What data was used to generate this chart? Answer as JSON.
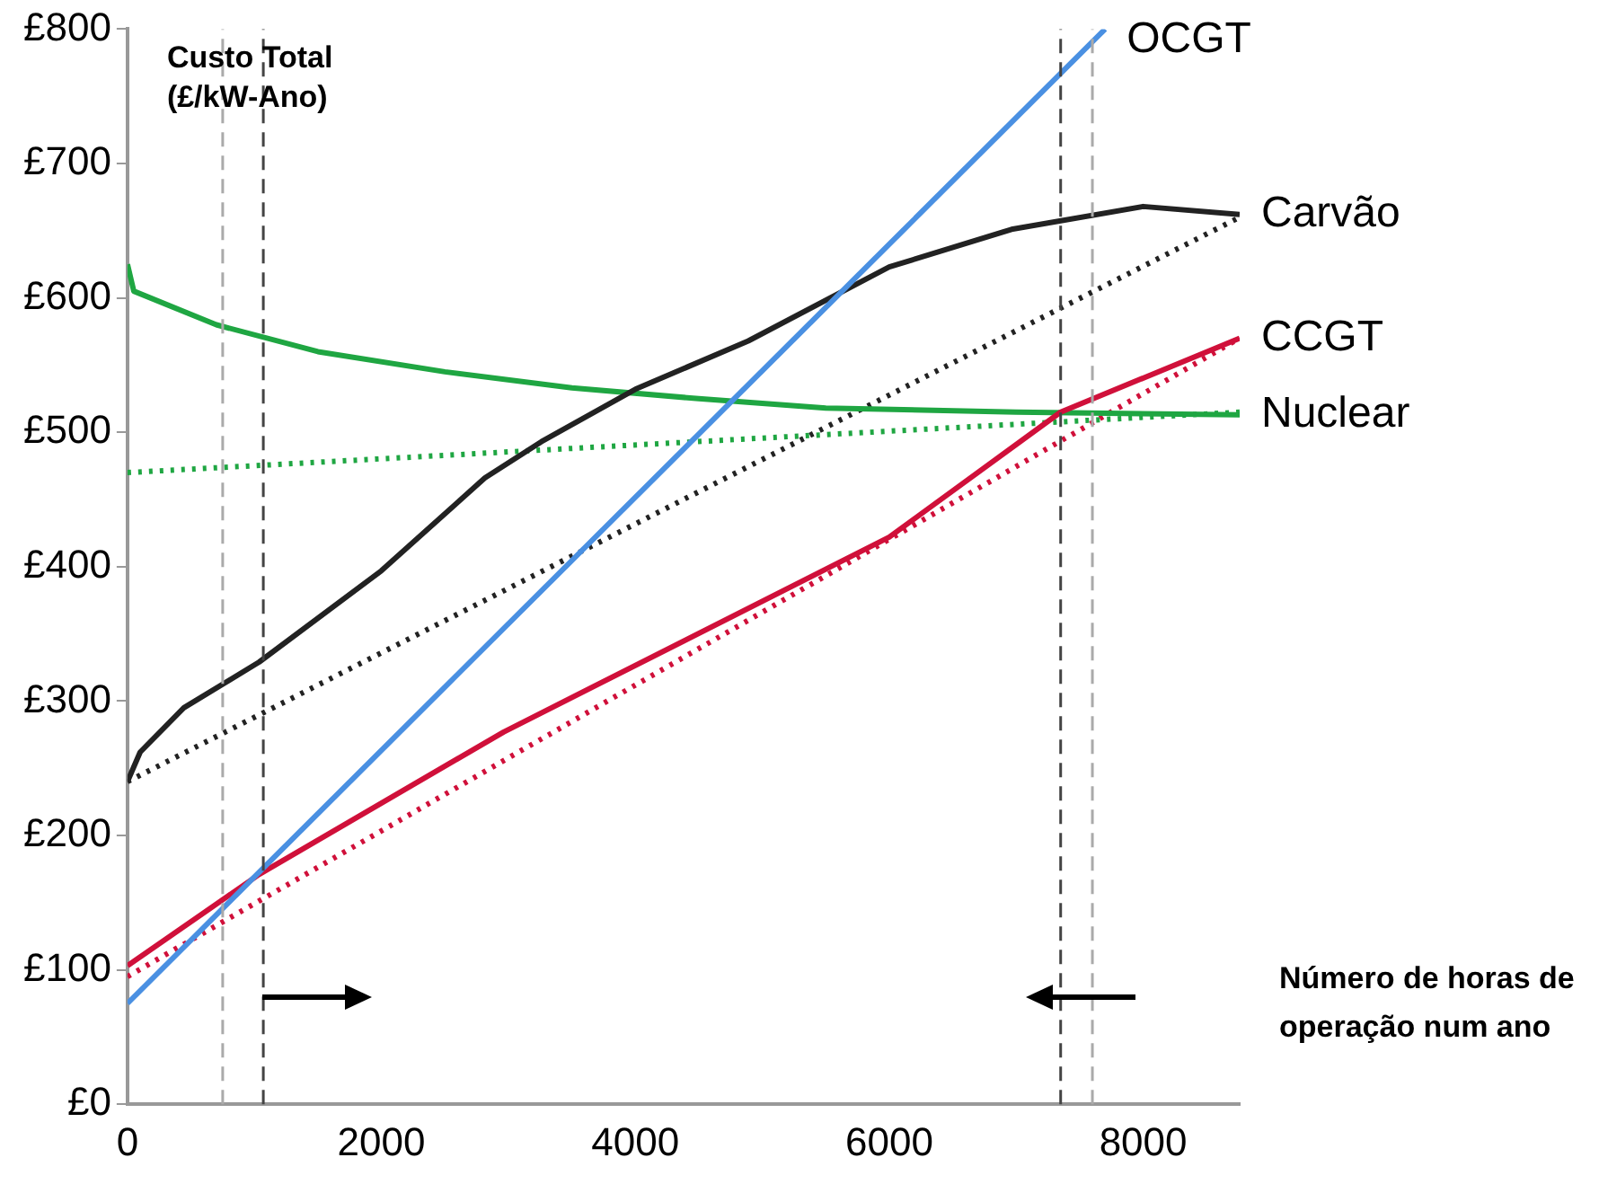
{
  "chart_data": {
    "type": "line",
    "xlabel": "Número de horas de operação num ano",
    "ylabel": "Custo Total (£/kW-Ano)",
    "xlim": [
      0,
      8760
    ],
    "xticks": [
      0,
      2000,
      4000,
      6000,
      8000
    ],
    "ylim": [
      0,
      800
    ],
    "yticks": [
      {
        "value": 0,
        "label": "£0"
      },
      {
        "value": 100,
        "label": "£100"
      },
      {
        "value": 200,
        "label": "£200"
      },
      {
        "value": 300,
        "label": "£300"
      },
      {
        "value": 400,
        "label": "£400"
      },
      {
        "value": 500,
        "label": "£500"
      },
      {
        "value": 600,
        "label": "£600"
      },
      {
        "value": 700,
        "label": "£700"
      },
      {
        "value": 800,
        "label": "£800"
      }
    ],
    "grid": false,
    "legend": false,
    "marker": "none",
    "series": [
      {
        "name": "OCGT",
        "color": "#4a90e2",
        "x": [
          0,
          7700
        ],
        "values": [
          75,
          800
        ]
      },
      {
        "name": "Carvão",
        "color": "#222222",
        "x": [
          0,
          100,
          444,
          1037,
          2000,
          2815,
          3260,
          4000,
          4890,
          6000,
          6963,
          8000,
          8760
        ],
        "values": [
          240,
          262,
          295,
          329,
          397,
          466,
          493,
          532,
          568,
          623,
          651,
          668,
          662
        ]
      },
      {
        "name": "CCGT",
        "color": "#d0103a",
        "x": [
          0,
          1037,
          2963,
          6000,
          7350,
          8760
        ],
        "values": [
          103,
          171,
          277,
          422,
          515,
          570
        ]
      },
      {
        "name": "Nuclear",
        "color": "#1fa642",
        "x": [
          0,
          50,
          700,
          1500,
          2500,
          3500,
          4500,
          5500,
          7000,
          8760
        ],
        "values": [
          625,
          605,
          580,
          560,
          545,
          533,
          525,
          518,
          515,
          513
        ]
      },
      {
        "color": "#222222",
        "line_style": "dotted",
        "x": [
          0,
          8760
        ],
        "values": [
          240,
          660
        ]
      },
      {
        "color": "#d0103a",
        "line_style": "dotted",
        "x": [
          0,
          8760
        ],
        "values": [
          95,
          570
        ]
      },
      {
        "color": "#1fa642",
        "line_style": "dotted",
        "x": [
          0,
          8760
        ],
        "values": [
          470,
          515
        ]
      }
    ],
    "ref_lines": [
      {
        "axis": "x",
        "value": 750,
        "color": "#aaaaaa",
        "line_style": "dashed"
      },
      {
        "axis": "x",
        "value": 1070,
        "color": "#444444",
        "line_style": "dashed"
      },
      {
        "axis": "x",
        "value": 7350,
        "color": "#444444",
        "line_style": "dashed"
      },
      {
        "axis": "x",
        "value": 7600,
        "color": "#aaaaaa",
        "line_style": "dashed"
      }
    ]
  }
}
